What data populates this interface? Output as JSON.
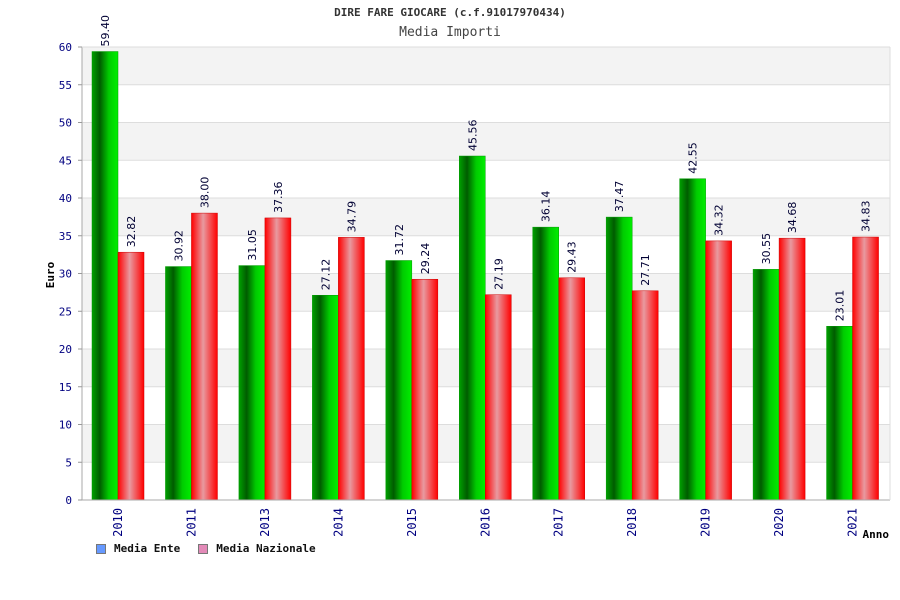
{
  "title": "DIRE FARE GIOCARE (c.f.91017970434)",
  "subtitle": "Media Importi",
  "chart_data": {
    "type": "bar",
    "xlabel": "Anno",
    "ylabel": "Euro",
    "ylim": [
      0,
      60
    ],
    "yticks": [
      0,
      5,
      10,
      15,
      20,
      25,
      30,
      35,
      40,
      45,
      50,
      55,
      60
    ],
    "grid": true,
    "legend_position": "bottom-left",
    "categories": [
      "2010",
      "2011",
      "2013",
      "2014",
      "2015",
      "2016",
      "2017",
      "2018",
      "2019",
      "2020",
      "2021"
    ],
    "series": [
      {
        "name": "Media Ente",
        "color": "#00cc00",
        "legend_color": "#6699ff",
        "values": [
          59.4,
          30.92,
          31.05,
          27.12,
          31.72,
          45.56,
          36.14,
          37.47,
          42.55,
          30.55,
          23.01
        ],
        "labels": [
          "59.40",
          "30.92",
          "31.05",
          "27.12",
          "31.72",
          "45.56",
          "36.14",
          "37.47",
          "42.55",
          "30.55",
          "23.01"
        ]
      },
      {
        "name": "Media Nazionale",
        "color": "#ff1a1a",
        "legend_color": "#e38ab8",
        "values": [
          32.82,
          38.0,
          37.36,
          34.79,
          29.24,
          27.19,
          29.43,
          27.71,
          34.32,
          34.68,
          34.83
        ],
        "labels": [
          "32.82",
          "38.00",
          "37.36",
          "34.79",
          "29.24",
          "27.19",
          "29.43",
          "27.71",
          "34.32",
          "34.68",
          "34.83"
        ]
      }
    ]
  }
}
